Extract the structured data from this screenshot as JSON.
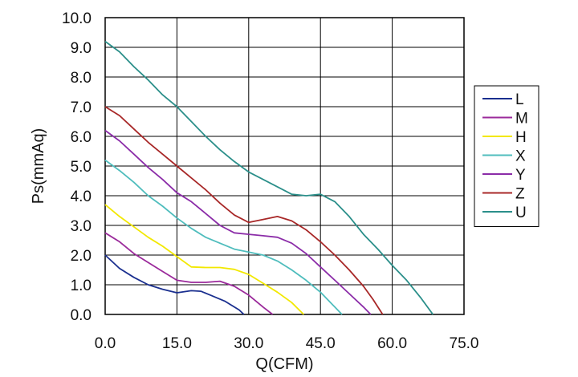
{
  "chart_data": {
    "type": "line",
    "xlabel": "Q(CFM)",
    "ylabel": "Ps(mmAq)",
    "xlim": [
      0,
      75
    ],
    "ylim": [
      0,
      10
    ],
    "x_ticks": [
      "0.0",
      "15.0",
      "30.0",
      "45.0",
      "60.0",
      "75.0"
    ],
    "y_ticks": [
      "0.0",
      "1.0",
      "2.0",
      "3.0",
      "4.0",
      "5.0",
      "6.0",
      "7.0",
      "8.0",
      "9.0",
      "10.0"
    ],
    "grid": true,
    "legend_position": "right",
    "series": [
      {
        "name": "L",
        "color": "#1a2f8f",
        "x": [
          0,
          3,
          6,
          9,
          12,
          15,
          18,
          20,
          22,
          25,
          28,
          29
        ],
        "y": [
          2.0,
          1.55,
          1.25,
          1.0,
          0.85,
          0.73,
          0.8,
          0.78,
          0.65,
          0.45,
          0.15,
          0.0
        ]
      },
      {
        "name": "M",
        "color": "#9b2a9b",
        "x": [
          0,
          3,
          6,
          9,
          12,
          15,
          18,
          21,
          24,
          27,
          30,
          33,
          35
        ],
        "y": [
          2.75,
          2.45,
          2.05,
          1.75,
          1.45,
          1.15,
          1.08,
          1.08,
          1.12,
          0.95,
          0.65,
          0.25,
          0.0
        ]
      },
      {
        "name": "H",
        "color": "#f2e800",
        "x": [
          0,
          3,
          6,
          9,
          12,
          15,
          18,
          21,
          24,
          27,
          30,
          33,
          36,
          39,
          41.5
        ],
        "y": [
          3.7,
          3.3,
          2.95,
          2.6,
          2.3,
          1.95,
          1.6,
          1.58,
          1.58,
          1.52,
          1.35,
          1.05,
          0.75,
          0.4,
          0.0
        ]
      },
      {
        "name": "X",
        "color": "#4fbdbd",
        "x": [
          0,
          3,
          6,
          9,
          12,
          15,
          18,
          21,
          24,
          27,
          30,
          33,
          36,
          39,
          42,
          45,
          48,
          49.5
        ],
        "y": [
          5.2,
          4.85,
          4.45,
          4.0,
          3.65,
          3.25,
          2.9,
          2.6,
          2.4,
          2.2,
          2.1,
          2.0,
          1.8,
          1.5,
          1.15,
          0.75,
          0.25,
          0.0
        ]
      },
      {
        "name": "Y",
        "color": "#8b2ca8",
        "x": [
          0,
          3,
          6,
          9,
          12,
          15,
          18,
          21,
          24,
          27,
          30,
          33,
          36,
          39,
          42,
          45,
          48,
          51,
          54,
          55.5
        ],
        "y": [
          6.2,
          5.85,
          5.4,
          4.95,
          4.55,
          4.1,
          3.8,
          3.4,
          3.0,
          2.75,
          2.7,
          2.65,
          2.6,
          2.4,
          2.05,
          1.6,
          1.15,
          0.7,
          0.25,
          0.0
        ]
      },
      {
        "name": "Z",
        "color": "#a82828",
        "x": [
          0,
          3,
          6,
          9,
          12,
          15,
          18,
          21,
          24,
          27,
          30,
          33,
          36,
          39,
          42,
          45,
          48,
          51,
          54,
          56,
          58
        ],
        "y": [
          7.0,
          6.7,
          6.25,
          5.8,
          5.4,
          5.0,
          4.6,
          4.2,
          3.75,
          3.35,
          3.1,
          3.2,
          3.3,
          3.15,
          2.85,
          2.45,
          2.0,
          1.5,
          0.95,
          0.5,
          0.0
        ]
      },
      {
        "name": "U",
        "color": "#2b8f8a",
        "x": [
          0,
          3,
          6,
          9,
          12,
          15,
          18,
          21,
          24,
          27,
          30,
          33,
          36,
          39,
          42,
          45,
          48,
          51,
          54,
          57,
          60,
          63,
          66,
          68.5
        ],
        "y": [
          9.2,
          8.85,
          8.35,
          7.9,
          7.4,
          7.0,
          6.5,
          6.0,
          5.55,
          5.15,
          4.8,
          4.55,
          4.3,
          4.05,
          4.0,
          4.05,
          3.8,
          3.3,
          2.7,
          2.2,
          1.65,
          1.15,
          0.55,
          0.0
        ]
      }
    ]
  }
}
